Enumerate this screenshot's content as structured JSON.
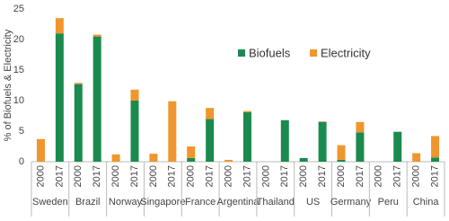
{
  "chart_data": {
    "type": "stacked_bar",
    "y_label": "% of Biofuels & Electricity",
    "categories": [
      "2000",
      "2017",
      "2000",
      "2017",
      "2000",
      "2017",
      "2000",
      "2017",
      "2000",
      "2017",
      "2000",
      "2017",
      "2000",
      "2017",
      "2000",
      "2017",
      "2000",
      "2017",
      "2000",
      "2017",
      "2000",
      "2017"
    ],
    "groups": [
      "Sweden",
      "Brazil",
      "Norway",
      "Singapore",
      "France",
      "Argentina",
      "Thailand",
      "US",
      "Germany",
      "Peru",
      "China"
    ],
    "series": [
      {
        "name": "Biofuels",
        "color": "#1b8a4f",
        "values": [
          0,
          21,
          12.7,
          20.5,
          0,
          10,
          0,
          0,
          0.6,
          7,
          0,
          8.1,
          0,
          6.8,
          0.6,
          6.5,
          0.3,
          4.8,
          0,
          4.9,
          0,
          0.7
        ]
      },
      {
        "name": "Electricity",
        "color": "#f0962e",
        "values": [
          3.7,
          2.5,
          0.2,
          0.3,
          1.2,
          1.8,
          1.3,
          9.9,
          1.9,
          1.8,
          0.3,
          0.2,
          0,
          0,
          0,
          0.1,
          2.4,
          1.7,
          0,
          0,
          1.4,
          3.5
        ]
      }
    ],
    "ylim": [
      0,
      25
    ],
    "yticks": [
      0,
      5,
      10,
      15,
      20,
      25
    ],
    "grid": false
  }
}
